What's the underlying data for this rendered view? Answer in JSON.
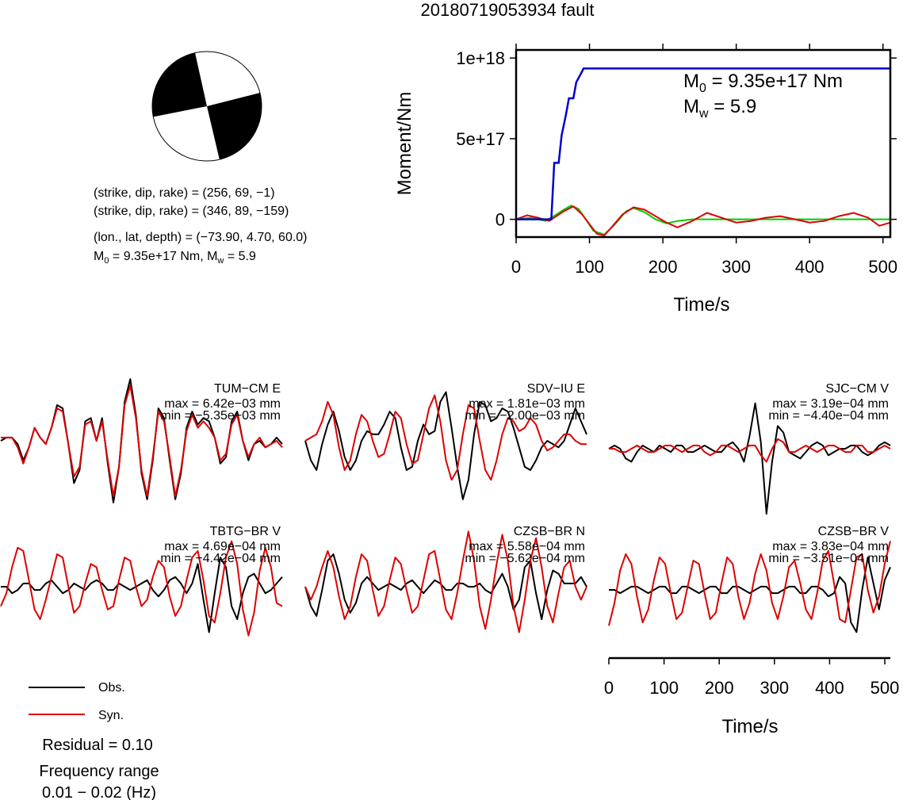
{
  "title": "20180719053934 fault",
  "info": {
    "line1": "(strike, dip, rake) = (256, 69, −1)",
    "line2": "(strike, dip, rake) = (346, 89, −159)",
    "line3": "(lon., lat, depth) = (−73.90, 4.70, 60.0)",
    "m0_prefix": "M",
    "m0_sub": "0",
    "m0_rest": " = 9.35e+17 Nm, M",
    "mw_sub": "w",
    "mw_rest": " = 5.9"
  },
  "moment_panel": {
    "annot_m0_label": "M",
    "annot_m0_sub": "0",
    "annot_m0_value": " = 9.35e+17 Nm",
    "annot_mw_label": "M",
    "annot_mw_sub": "w",
    "annot_mw_value": " = 5.9"
  },
  "legend": {
    "obs": "Obs.",
    "syn": "Syn.",
    "residual": "Residual = 0.10",
    "freq_label": "Frequency range",
    "freq_value": "0.01 − 0.02 (Hz)"
  },
  "colors": {
    "obs": "#000000",
    "syn": "#dd0000",
    "cumulative": "#0000cc",
    "green": "#00cc00",
    "red": "#dd0000",
    "beachball_fill": "#000000"
  },
  "chart_data": [
    {
      "type": "line",
      "name": "moment_rate",
      "xlabel": "Time/s",
      "ylabel": "Moment/Nm",
      "xlim": [
        0,
        510
      ],
      "ylim": [
        -1.1e+17,
        1.05e+18
      ],
      "xticks": [
        0,
        100,
        200,
        300,
        400,
        500
      ],
      "yticks": [
        0,
        5e+17,
        1e+18
      ],
      "ytick_labels": [
        "0",
        "5e+17",
        "1e+18"
      ],
      "series": [
        {
          "role": "cumulative",
          "x": [
            0,
            48,
            52,
            58,
            62,
            68,
            72,
            78,
            82,
            88,
            92,
            95,
            510
          ],
          "y": [
            0,
            0,
            3.5e+17,
            3.5e+17,
            5.2e+17,
            6.5e+17,
            7.5e+17,
            7.5e+17,
            8.5e+17,
            9e+17,
            9.35e+17,
            9.35e+17,
            9.35e+17
          ]
        },
        {
          "role": "green",
          "x": [
            0,
            20,
            40,
            55,
            65,
            75,
            85,
            95,
            105,
            120,
            135,
            150,
            160,
            175,
            190,
            205,
            220,
            240,
            260,
            280,
            300,
            320,
            340,
            360,
            380,
            400,
            420,
            440,
            460,
            480,
            510
          ],
          "y": [
            0,
            1e+16,
            -1e+16,
            3e+16,
            6e+16,
            8.5e+16,
            6.5e+16,
            0,
            -7e+16,
            -9.5e+16,
            -3e+16,
            5e+16,
            7e+16,
            4.5e+16,
            0,
            -2.5e+16,
            -1e+16,
            0,
            0,
            0,
            0,
            0,
            0,
            0,
            0,
            0,
            0,
            0,
            0,
            0,
            0
          ]
        },
        {
          "role": "red",
          "x": [
            0,
            15,
            30,
            45,
            55,
            65,
            78,
            90,
            100,
            110,
            120,
            130,
            145,
            160,
            175,
            190,
            205,
            220,
            240,
            260,
            280,
            300,
            320,
            340,
            360,
            380,
            400,
            420,
            440,
            460,
            480,
            495,
            510
          ],
          "y": [
            0,
            2.5e+16,
            1e+16,
            -1e+16,
            2e+16,
            5e+16,
            8e+16,
            3e+16,
            -3e+16,
            -9e+16,
            -1e+17,
            -5e+16,
            3e+16,
            7.5e+16,
            6e+16,
            2e+16,
            -2e+16,
            -5e+16,
            -1e+16,
            4e+16,
            1e+16,
            -2e+16,
            -1e+16,
            1e+16,
            2e+16,
            0,
            -2e+16,
            -1e+16,
            2e+16,
            4e+16,
            1e+16,
            -4e+16,
            -2e+16
          ]
        }
      ]
    },
    {
      "type": "line",
      "name": "waveforms",
      "xlabel": "Time/s",
      "xlim": [
        0,
        510
      ],
      "xticks": [
        0,
        100,
        200,
        300,
        400,
        500
      ],
      "stations": [
        {
          "label": "TUM−CM E",
          "max": "max = 6.42e−03 mm",
          "min": "min = −5.35e−03 mm",
          "obs": [
            0.0,
            0.05,
            0.05,
            -0.05,
            -0.3,
            -0.1,
            0.2,
            0.05,
            -0.05,
            0.2,
            0.55,
            0.5,
            -0.05,
            -0.65,
            -0.45,
            0.3,
            0.35,
            0.0,
            0.35,
            -0.35,
            -0.95,
            -0.4,
            0.6,
            0.95,
            0.4,
            -0.5,
            -0.9,
            -0.3,
            0.5,
            0.35,
            -0.3,
            -0.9,
            -0.5,
            0.2,
            0.45,
            0.25,
            0.35,
            0.3,
            0.05,
            -0.35,
            -0.25,
            0.3,
            0.45,
            0.0,
            -0.3,
            -0.05,
            0.0,
            -0.1,
            -0.05,
            0.05,
            -0.05
          ],
          "syn": [
            0.05,
            0.05,
            0.05,
            -0.1,
            -0.35,
            -0.1,
            0.2,
            0.05,
            -0.05,
            0.2,
            0.5,
            0.45,
            -0.05,
            -0.55,
            -0.4,
            0.25,
            0.3,
            0.0,
            0.3,
            -0.3,
            -0.85,
            -0.4,
            0.55,
            0.85,
            0.35,
            -0.45,
            -0.85,
            -0.25,
            0.45,
            0.3,
            -0.25,
            -0.85,
            -0.45,
            0.15,
            0.4,
            0.2,
            0.3,
            0.2,
            0.05,
            -0.3,
            -0.2,
            0.25,
            0.4,
            0.0,
            -0.25,
            -0.05,
            0.05,
            -0.1,
            -0.05,
            0.0,
            -0.1
          ]
        },
        {
          "label": "SDV−IU E",
          "max": "max = 1.81e−03 mm",
          "min": "min = −2.00e−03 mm",
          "obs": [
            0.0,
            -0.3,
            -0.45,
            -0.05,
            0.25,
            0.45,
            0.15,
            -0.25,
            -0.45,
            -0.3,
            0.0,
            0.15,
            0.1,
            0.1,
            0.25,
            0.45,
            0.35,
            -0.1,
            -0.45,
            -0.4,
            0.0,
            0.25,
            0.1,
            0.15,
            0.6,
            0.75,
            0.2,
            -0.4,
            -0.9,
            -0.6,
            0.1,
            0.6,
            0.55,
            0.3,
            0.35,
            0.5,
            0.45,
            0.2,
            -0.1,
            -0.4,
            -0.45,
            -0.3,
            -0.1,
            0.0,
            -0.05,
            -0.1,
            0.0,
            0.25,
            0.5,
            0.3,
            0.1
          ],
          "syn": [
            0.0,
            0.05,
            0.1,
            0.3,
            0.6,
            0.4,
            -0.1,
            -0.45,
            -0.3,
            0.1,
            0.4,
            0.3,
            0.0,
            -0.25,
            -0.2,
            0.1,
            0.45,
            0.35,
            -0.05,
            -0.35,
            -0.3,
            0.1,
            0.5,
            0.7,
            0.3,
            -0.3,
            -0.6,
            -0.45,
            0.1,
            0.55,
            0.5,
            0.0,
            -0.45,
            -0.6,
            -0.3,
            0.1,
            0.35,
            0.3,
            0.15,
            0.2,
            0.35,
            0.25,
            0.0,
            -0.15,
            -0.1,
            0.0,
            0.1,
            0.1,
            0.0,
            -0.05,
            -0.05
          ]
        },
        {
          "label": "SJC−CM V",
          "max": "max = 3.19e−04 mm",
          "min": "min = −4.40e−04 mm",
          "obs": [
            0.0,
            0.05,
            0.0,
            -0.15,
            -0.2,
            -0.05,
            0.05,
            0.0,
            -0.05,
            0.05,
            0.0,
            -0.05,
            0.05,
            0.05,
            -0.05,
            -0.05,
            0.0,
            0.05,
            0.0,
            -0.05,
            -0.05,
            0.05,
            0.1,
            0.0,
            -0.2,
            0.2,
            0.7,
            0.1,
            -1.0,
            -0.2,
            0.35,
            0.25,
            -0.05,
            -0.1,
            -0.15,
            -0.05,
            0.05,
            0.1,
            0.05,
            -0.1,
            -0.05,
            0.0,
            0.0,
            0.05,
            0.05,
            -0.05,
            -0.1,
            -0.05,
            0.05,
            0.1,
            0.05
          ],
          "syn": [
            0.0,
            0.0,
            -0.05,
            -0.05,
            0.0,
            0.05,
            0.0,
            -0.05,
            -0.05,
            0.0,
            0.05,
            0.05,
            0.0,
            -0.05,
            0.0,
            0.05,
            0.05,
            -0.05,
            -0.1,
            -0.05,
            0.05,
            0.05,
            0.0,
            -0.05,
            0.0,
            0.05,
            0.05,
            -0.1,
            -0.2,
            0.0,
            0.15,
            0.1,
            -0.05,
            -0.05,
            0.0,
            0.05,
            0.0,
            -0.05,
            0.0,
            0.05,
            0.05,
            0.0,
            -0.05,
            -0.05,
            0.05,
            0.05,
            -0.05,
            -0.05,
            0.0,
            0.05,
            0.0
          ]
        },
        {
          "label": "TBTG−BR V",
          "max": "max = 4.69e−04 mm",
          "min": "min = −4.42e−04 mm",
          "obs": [
            0.0,
            0.0,
            -0.1,
            -0.05,
            0.05,
            0.05,
            -0.05,
            -0.05,
            0.05,
            0.1,
            0.0,
            -0.1,
            -0.05,
            0.05,
            0.0,
            -0.05,
            0.05,
            0.1,
            0.05,
            -0.05,
            -0.05,
            0.05,
            0.0,
            -0.05,
            0.0,
            0.05,
            0.1,
            -0.05,
            -0.15,
            -0.05,
            0.1,
            0.15,
            0.05,
            -0.1,
            0.05,
            0.35,
            -0.2,
            -0.7,
            -0.1,
            0.45,
            0.3,
            -0.3,
            -0.5,
            -0.1,
            0.15,
            0.2,
            0.05,
            -0.1,
            -0.05,
            0.05,
            0.15
          ],
          "syn": [
            -0.3,
            -0.1,
            0.3,
            0.6,
            0.55,
            0.1,
            -0.35,
            -0.5,
            -0.2,
            0.15,
            0.5,
            0.45,
            0.0,
            -0.4,
            -0.3,
            0.05,
            0.35,
            0.3,
            -0.05,
            -0.35,
            -0.3,
            0.1,
            0.45,
            0.4,
            0.0,
            -0.3,
            -0.2,
            0.15,
            0.4,
            0.3,
            -0.15,
            -0.45,
            -0.3,
            0.1,
            0.45,
            0.55,
            0.1,
            -0.45,
            -0.55,
            -0.1,
            0.45,
            0.7,
            0.35,
            -0.35,
            -0.75,
            -0.4,
            0.25,
            0.6,
            0.3,
            -0.25,
            -0.3
          ]
        },
        {
          "label": "CZSB−BR N",
          "max": "max = 5.58e−04 mm",
          "min": "min = −5.62e−04 mm",
          "obs": [
            0.0,
            -0.3,
            -0.45,
            -0.05,
            0.4,
            0.5,
            0.2,
            -0.2,
            -0.4,
            -0.25,
            0.05,
            0.15,
            0.05,
            -0.05,
            0.0,
            0.05,
            0.0,
            -0.05,
            0.05,
            0.1,
            0.0,
            -0.1,
            0.0,
            0.1,
            0.05,
            -0.05,
            -0.05,
            0.05,
            0.05,
            0.0,
            0.0,
            0.05,
            -0.05,
            -0.1,
            0.05,
            0.2,
            0.0,
            -0.35,
            -0.2,
            0.3,
            0.4,
            -0.1,
            -0.5,
            -0.05,
            0.25,
            0.2,
            0.05,
            0.05,
            0.05,
            0.15,
            0.0
          ],
          "syn": [
            0.0,
            -0.2,
            0.0,
            0.3,
            0.55,
            0.3,
            -0.15,
            -0.5,
            -0.3,
            0.15,
            0.5,
            0.4,
            -0.05,
            -0.45,
            -0.3,
            0.1,
            0.45,
            0.35,
            -0.05,
            -0.4,
            -0.3,
            0.1,
            0.5,
            0.55,
            0.1,
            -0.35,
            -0.5,
            -0.1,
            0.4,
            0.85,
            0.4,
            -0.3,
            -0.65,
            -0.2,
            0.35,
            0.8,
            0.4,
            -0.3,
            -0.7,
            -0.2,
            0.4,
            0.75,
            0.3,
            -0.3,
            -0.55,
            -0.1,
            0.3,
            0.4,
            0.0,
            -0.2,
            0.0
          ]
        },
        {
          "label": "CZSB−BR V",
          "max": "max = 3.83e−04 mm",
          "min": "min = −3.51e−04 mm",
          "obs": [
            0.0,
            0.0,
            -0.05,
            0.0,
            0.05,
            0.05,
            0.0,
            -0.05,
            0.0,
            0.05,
            0.05,
            -0.05,
            -0.05,
            0.05,
            0.05,
            0.0,
            -0.05,
            0.0,
            0.05,
            0.05,
            -0.05,
            -0.05,
            0.05,
            0.05,
            0.0,
            -0.05,
            0.0,
            0.05,
            0.05,
            -0.05,
            -0.05,
            0.0,
            0.05,
            0.05,
            -0.05,
            -0.05,
            0.05,
            0.05,
            0.0,
            -0.1,
            -0.05,
            0.2,
            0.1,
            -0.5,
            -0.65,
            0.0,
            0.5,
            0.1,
            -0.3,
            0.15,
            0.35
          ],
          "syn": [
            -0.55,
            -0.2,
            0.3,
            0.55,
            0.4,
            -0.1,
            -0.5,
            -0.3,
            0.15,
            0.5,
            0.4,
            -0.05,
            -0.45,
            -0.35,
            0.05,
            0.45,
            0.4,
            -0.05,
            -0.45,
            -0.35,
            0.1,
            0.5,
            0.4,
            -0.1,
            -0.45,
            -0.2,
            0.25,
            0.55,
            0.3,
            -0.2,
            -0.45,
            -0.1,
            0.35,
            0.45,
            0.1,
            -0.3,
            -0.45,
            -0.05,
            0.45,
            0.6,
            0.1,
            -0.45,
            -0.5,
            0.0,
            0.5,
            0.55,
            0.0,
            -0.35,
            -0.1,
            0.4,
            0.75
          ]
        }
      ]
    }
  ]
}
